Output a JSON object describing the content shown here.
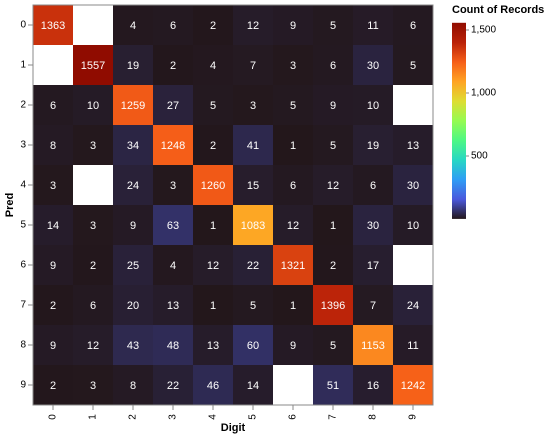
{
  "chart_data": {
    "type": "heatmap",
    "x_label": "Digit",
    "y_label": "Pred",
    "legend_title": "Count of Records",
    "color_scheme": "turbo",
    "x": [
      "0",
      "1",
      "2",
      "3",
      "4",
      "5",
      "6",
      "7",
      "8",
      "9"
    ],
    "y": [
      "0",
      "1",
      "2",
      "3",
      "4",
      "5",
      "6",
      "7",
      "8",
      "9"
    ],
    "values": [
      [
        1363,
        null,
        4,
        6,
        2,
        12,
        9,
        5,
        11,
        6
      ],
      [
        null,
        1557,
        19,
        2,
        4,
        7,
        3,
        6,
        30,
        5
      ],
      [
        6,
        10,
        1259,
        27,
        5,
        3,
        5,
        9,
        10,
        null
      ],
      [
        8,
        3,
        34,
        1248,
        2,
        41,
        1,
        5,
        19,
        13
      ],
      [
        3,
        null,
        24,
        3,
        1260,
        15,
        6,
        12,
        6,
        30
      ],
      [
        14,
        3,
        9,
        63,
        1,
        1083,
        12,
        1,
        30,
        10
      ],
      [
        9,
        2,
        25,
        4,
        12,
        22,
        1321,
        2,
        17,
        null
      ],
      [
        2,
        6,
        20,
        13,
        1,
        5,
        1,
        1396,
        7,
        24
      ],
      [
        9,
        12,
        43,
        48,
        13,
        60,
        9,
        5,
        1153,
        11
      ],
      [
        2,
        3,
        8,
        22,
        46,
        14,
        null,
        51,
        16,
        1242
      ]
    ],
    "colorlim": [
      1,
      1557
    ],
    "colorticks": [
      500,
      {
        "value": 1000,
        "label": "1,000"
      },
      {
        "value": 1500,
        "label": "1,500"
      }
    ]
  }
}
